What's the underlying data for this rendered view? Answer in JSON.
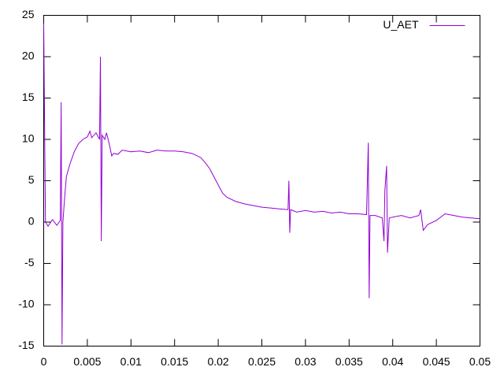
{
  "chart_data": {
    "type": "line",
    "x": [
      0,
      0.0002,
      0.0005,
      0.001,
      0.0015,
      0.0019,
      0.002,
      0.0021,
      0.0022,
      0.0024,
      0.0026,
      0.003,
      0.0035,
      0.004,
      0.0045,
      0.005,
      0.0053,
      0.0055,
      0.006,
      0.0064,
      0.0065,
      0.0066,
      0.0067,
      0.007,
      0.0072,
      0.0075,
      0.0078,
      0.008,
      0.0085,
      0.009,
      0.01,
      0.011,
      0.012,
      0.013,
      0.014,
      0.015,
      0.016,
      0.017,
      0.018,
      0.0185,
      0.019,
      0.0195,
      0.02,
      0.0205,
      0.021,
      0.022,
      0.023,
      0.024,
      0.025,
      0.026,
      0.027,
      0.028,
      0.0281,
      0.0282,
      0.0283,
      0.029,
      0.03,
      0.031,
      0.032,
      0.033,
      0.034,
      0.035,
      0.036,
      0.037,
      0.0372,
      0.0373,
      0.0374,
      0.038,
      0.0388,
      0.039,
      0.0391,
      0.0393,
      0.0394,
      0.0396,
      0.04,
      0.041,
      0.042,
      0.043,
      0.0432,
      0.0435,
      0.044,
      0.045,
      0.046,
      0.047,
      0.048,
      0.049,
      0.05
    ],
    "series": [
      {
        "name": "U_AET",
        "color": "#9400d3",
        "values": [
          24,
          0,
          -0.5,
          0.3,
          -0.4,
          0.2,
          14.5,
          -14.8,
          0,
          3,
          5.5,
          7,
          8.5,
          9.5,
          10,
          10.3,
          11,
          10.2,
          10.8,
          10,
          20,
          -2.3,
          10.5,
          10,
          10.8,
          9.5,
          8,
          8.3,
          8.2,
          8.7,
          8.5,
          8.6,
          8.4,
          8.7,
          8.6,
          8.6,
          8.5,
          8.3,
          7.8,
          7.2,
          6.5,
          5.5,
          4.5,
          3.5,
          3,
          2.5,
          2.2,
          2,
          1.8,
          1.7,
          1.6,
          1.5,
          5,
          -1.3,
          1.5,
          1.2,
          1.4,
          1.2,
          1.3,
          1.1,
          1.2,
          1,
          1,
          0.9,
          9.6,
          -9.2,
          0.8,
          0.8,
          0.5,
          -2.3,
          3.8,
          6.8,
          -3.7,
          0.5,
          0.6,
          0.8,
          0.5,
          0.8,
          1.5,
          -1,
          -0.3,
          0.2,
          1,
          0.8,
          0.6,
          0.5,
          0.4
        ]
      }
    ],
    "xlim": [
      0,
      0.05
    ],
    "xticks": [
      0,
      0.005,
      0.01,
      0.015,
      0.02,
      0.025,
      0.03,
      0.035,
      0.04,
      0.045,
      0.05
    ],
    "ylim": [
      -15,
      25
    ],
    "yticks": [
      -15,
      -10,
      -5,
      0,
      5,
      10,
      15,
      20,
      25
    ],
    "grid": false,
    "legend": "top-right"
  }
}
